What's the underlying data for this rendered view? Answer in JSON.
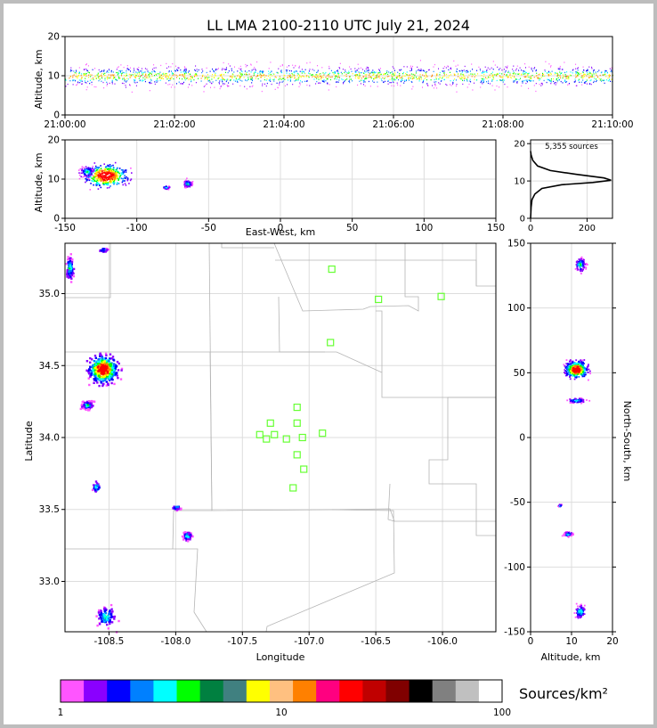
{
  "title": "LL LMA 2100-2110 UTC July 21, 2024",
  "colors": {
    "frame": "#bdbdbd",
    "grid": "#dddddd",
    "county_lines": "#b5b5b5",
    "station_marker": "#66ff33",
    "histogram_line": "#000000"
  },
  "chart_data": [
    {
      "id": "time_altitude",
      "type": "scatter",
      "xlabel": "",
      "ylabel": "Altitude, km",
      "xlim": [
        "21:00:00",
        "21:10:00"
      ],
      "ylim": [
        0,
        20
      ],
      "x_ticks": [
        "21:00:00",
        "21:02:00",
        "21:04:00",
        "21:06:00",
        "21:08:00",
        "21:10:00"
      ],
      "y_ticks": [
        0,
        10,
        20
      ],
      "altitude_band_km": [
        7,
        15
      ],
      "core_altitude_km": 10,
      "grid": true
    },
    {
      "id": "eastwest_altitude",
      "type": "scatter",
      "xlabel": "East-West, km",
      "ylabel": "Altitude, km",
      "xlim": [
        -150,
        150
      ],
      "ylim": [
        0,
        20
      ],
      "x_ticks": [
        -150,
        -100,
        -50,
        0,
        50,
        100,
        150
      ],
      "y_ticks": [
        0,
        10,
        20
      ],
      "clusters": [
        {
          "x_km": -122,
          "alt_km": 11,
          "x_spread_km": 18,
          "alt_spread_km": 3.6,
          "density": "high"
        },
        {
          "x_km": -135,
          "alt_km": 12,
          "x_spread_km": 6,
          "alt_spread_km": 1.8,
          "density": "medium"
        },
        {
          "x_km": -65,
          "alt_km": 9,
          "x_spread_km": 4,
          "alt_spread_km": 1.2,
          "density": "medium"
        },
        {
          "x_km": -80,
          "alt_km": 8,
          "x_spread_km": 3,
          "alt_spread_km": 0.6,
          "density": "low"
        }
      ],
      "grid": true
    },
    {
      "id": "altitude_histogram",
      "type": "line",
      "annotation": "5,355 sources",
      "xlim": [
        0,
        290
      ],
      "ylim": [
        0,
        21
      ],
      "x_ticks": [
        0,
        200
      ],
      "y_ticks": [
        0,
        10,
        20
      ],
      "points": [
        [
          0,
          0
        ],
        [
          2,
          3
        ],
        [
          5,
          5
        ],
        [
          15,
          6.5
        ],
        [
          40,
          8
        ],
        [
          110,
          9
        ],
        [
          220,
          9.6
        ],
        [
          285,
          10.2
        ],
        [
          260,
          10.8
        ],
        [
          160,
          11.8
        ],
        [
          70,
          12.8
        ],
        [
          25,
          14
        ],
        [
          8,
          15.5
        ],
        [
          2,
          17
        ],
        [
          0,
          18
        ]
      ],
      "grid": true
    },
    {
      "id": "plan_view",
      "type": "scatter",
      "xlabel": "Longitude",
      "ylabel": "Latitude",
      "xlim": [
        -108.83,
        -105.6
      ],
      "ylim": [
        32.65,
        35.35
      ],
      "x_ticks": [
        "-108.5",
        "-108.0",
        "-107.5",
        "-107.0",
        "-106.5",
        "-106.0"
      ],
      "y_ticks": [
        "33.0",
        "33.5",
        "34.0",
        "34.5",
        "35.0"
      ],
      "x_tick_values": [
        -108.5,
        -108.0,
        -107.5,
        -107.0,
        -106.5,
        -106.0
      ],
      "y_tick_values": [
        33.0,
        33.5,
        34.0,
        34.5,
        35.0
      ],
      "stations": [
        [
          -106.83,
          35.17
        ],
        [
          -106.48,
          34.96
        ],
        [
          -106.01,
          34.98
        ],
        [
          -106.84,
          34.66
        ],
        [
          -107.09,
          34.21
        ],
        [
          -107.29,
          34.1
        ],
        [
          -107.09,
          34.1
        ],
        [
          -107.37,
          34.02
        ],
        [
          -107.26,
          34.02
        ],
        [
          -107.32,
          33.99
        ],
        [
          -107.17,
          33.99
        ],
        [
          -107.05,
          34.0
        ],
        [
          -106.9,
          34.03
        ],
        [
          -107.09,
          33.88
        ],
        [
          -107.04,
          33.78
        ],
        [
          -107.12,
          33.65
        ]
      ],
      "clusters": [
        {
          "lon": -108.55,
          "lat": 34.48,
          "lon_spread": 0.07,
          "lat_spread": 0.06,
          "density": "high"
        },
        {
          "lon": -108.67,
          "lat": 34.23,
          "lon_spread": 0.03,
          "lat_spread": 0.02,
          "density": "medium"
        },
        {
          "lon": -108.8,
          "lat": 35.18,
          "lon_spread": 0.02,
          "lat_spread": 0.06,
          "density": "medium"
        },
        {
          "lon": -108.53,
          "lat": 32.76,
          "lon_spread": 0.05,
          "lat_spread": 0.05,
          "density": "medium"
        },
        {
          "lon": -107.92,
          "lat": 33.32,
          "lon_spread": 0.02,
          "lat_spread": 0.02,
          "density": "medium"
        },
        {
          "lon": -108.0,
          "lat": 33.52,
          "lon_spread": 0.02,
          "lat_spread": 0.01,
          "density": "low"
        },
        {
          "lon": -108.55,
          "lat": 35.31,
          "lon_spread": 0.02,
          "lat_spread": 0.01,
          "density": "low"
        },
        {
          "lon": -108.6,
          "lat": 33.66,
          "lon_spread": 0.02,
          "lat_spread": 0.03,
          "density": "low"
        }
      ],
      "grid": true
    },
    {
      "id": "altitude_northsouth",
      "type": "scatter",
      "xlabel": "Altitude, km",
      "ylabel": "North-South, km",
      "xlim": [
        0,
        20
      ],
      "ylim": [
        -150,
        150
      ],
      "x_ticks": [
        0,
        10,
        20
      ],
      "y_ticks": [
        -150,
        -100,
        -50,
        0,
        50,
        100,
        150
      ],
      "clusters": [
        {
          "alt_km": 11,
          "y_km": 53,
          "alt_spread_km": 3.2,
          "y_spread_km": 7,
          "density": "high"
        },
        {
          "alt_km": 11,
          "y_km": 29,
          "alt_spread_km": 3,
          "y_spread_km": 2,
          "density": "medium"
        },
        {
          "alt_km": 12,
          "y_km": 134,
          "alt_spread_km": 1.6,
          "y_spread_km": 6,
          "density": "medium"
        },
        {
          "alt_km": 12,
          "y_km": -134,
          "alt_spread_km": 1.6,
          "y_spread_km": 6,
          "density": "medium"
        },
        {
          "alt_km": 9,
          "y_km": -74,
          "alt_spread_km": 1.2,
          "y_spread_km": 2,
          "density": "medium"
        },
        {
          "alt_km": 7,
          "y_km": -52,
          "alt_spread_km": 0.5,
          "y_spread_km": 1,
          "density": "low"
        }
      ],
      "grid": true
    }
  ],
  "colorbar": {
    "label": "Sources/km²",
    "tick_labels": [
      "1",
      "10",
      "100"
    ],
    "tick_values": [
      1,
      10,
      100
    ],
    "colors": [
      "#ff55ff",
      "#8a00ff",
      "#0000ff",
      "#0080ff",
      "#00ffff",
      "#00ff00",
      "#008040",
      "#408080",
      "#ffff00",
      "#ffc080",
      "#ff8000",
      "#ff0080",
      "#ff0000",
      "#c00000",
      "#800000",
      "#000000",
      "#808080",
      "#c0c0c0",
      "#ffffff"
    ]
  }
}
